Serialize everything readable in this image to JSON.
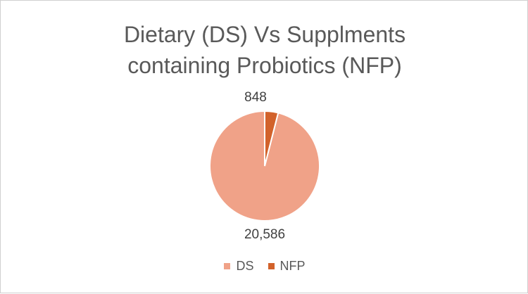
{
  "chart_data": {
    "type": "pie",
    "title_line1": "Dietary (DS) Vs Supplments",
    "title_line2": "containing Probiotics (NFP)",
    "slices": [
      {
        "name": "DS",
        "value": 20586,
        "label": "20,586",
        "color": "#F0A288"
      },
      {
        "name": "NFP",
        "value": 848,
        "label": "848",
        "color": "#D2622B"
      }
    ],
    "legend_position": "bottom"
  }
}
